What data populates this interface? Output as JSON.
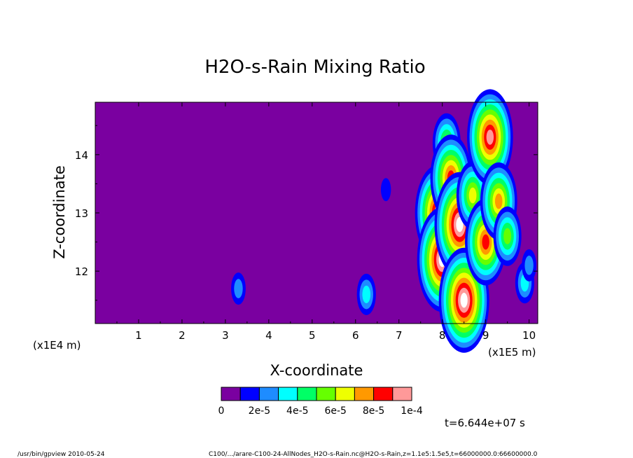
{
  "chart_data": {
    "type": "heatmap",
    "title": "H2O-s-Rain Mixing Ratio",
    "xlabel": "X-coordinate",
    "ylabel": "Z-coordinate",
    "x_scale_label": "(x1E5 m)",
    "z_scale_label": "(x1E4 m)",
    "xlim": [
      0,
      10.2
    ],
    "ylim": [
      11.1,
      14.9
    ],
    "x_ticks": [
      "1",
      "2",
      "3",
      "4",
      "5",
      "6",
      "7",
      "8",
      "9",
      "10"
    ],
    "y_ticks": [
      "12",
      "13",
      "14"
    ],
    "background_color": "#7a00a0",
    "colorbar": {
      "colors": [
        "#7a00a0",
        "#0000ff",
        "#1e8cff",
        "#00ffff",
        "#00ff66",
        "#66ff00",
        "#eeff00",
        "#ff9900",
        "#ff0000",
        "#ff9999"
      ],
      "labels": [
        "0",
        "2e-5",
        "4e-5",
        "6e-5",
        "8e-5",
        "1e-4"
      ]
    },
    "cells": [
      {
        "x": 3.3,
        "z": 11.7,
        "level": 2
      },
      {
        "x": 6.25,
        "z": 11.6,
        "level": 3
      },
      {
        "x": 6.7,
        "z": 13.4,
        "level": 1
      },
      {
        "x": 7.9,
        "z": 13.0,
        "level": 9
      },
      {
        "x": 8.0,
        "z": 12.2,
        "level": 10
      },
      {
        "x": 8.1,
        "z": 14.2,
        "level": 5
      },
      {
        "x": 8.2,
        "z": 13.6,
        "level": 8
      },
      {
        "x": 8.4,
        "z": 12.8,
        "level": 10
      },
      {
        "x": 8.5,
        "z": 11.5,
        "level": 10
      },
      {
        "x": 8.7,
        "z": 13.3,
        "level": 6
      },
      {
        "x": 9.0,
        "z": 12.5,
        "level": 8
      },
      {
        "x": 9.1,
        "z": 14.3,
        "level": 9
      },
      {
        "x": 9.3,
        "z": 13.2,
        "level": 7
      },
      {
        "x": 9.5,
        "z": 12.6,
        "level": 5
      },
      {
        "x": 9.9,
        "z": 11.8,
        "level": 3
      },
      {
        "x": 10.0,
        "z": 12.1,
        "level": 2
      }
    ]
  },
  "time_label": "t=6.644e+07 s",
  "footer": {
    "program": "/usr/bin/gpview  2010-05-24",
    "source": "C100/.../arare-C100-24-AllNodes_H2O-s-Rain.nc@H2O-s-Rain,z=1.1e5:1.5e5,t=66000000.0:66600000.0"
  }
}
